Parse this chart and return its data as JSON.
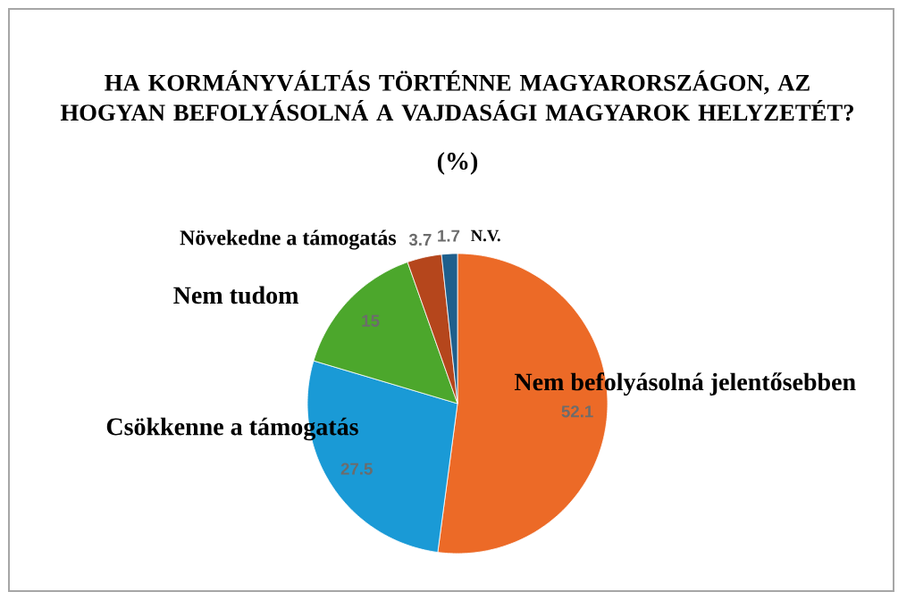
{
  "chart_data": {
    "type": "pie",
    "title": "HA KORMÁNYVÁLTÁS TÖRTÉNNE MAGYARORSZÁGON, AZ HOGYAN BEFOLYÁSOLNÁ A VAJDASÁGI MAGYAROK HELYZETÉT?",
    "subtitle": "(%)",
    "categories": [
      "Nem befolyásolná jelentősebben",
      "Csökkenne a támogatás",
      "Nem tudom",
      "Növekedne a támogatás",
      "N.V."
    ],
    "values": [
      52.1,
      27.5,
      15,
      3.7,
      1.7
    ],
    "colors": [
      "#ec6a27",
      "#1a9ad6",
      "#4ca72c",
      "#b5461c",
      "#1f5f8c"
    ],
    "data_labels": true
  }
}
